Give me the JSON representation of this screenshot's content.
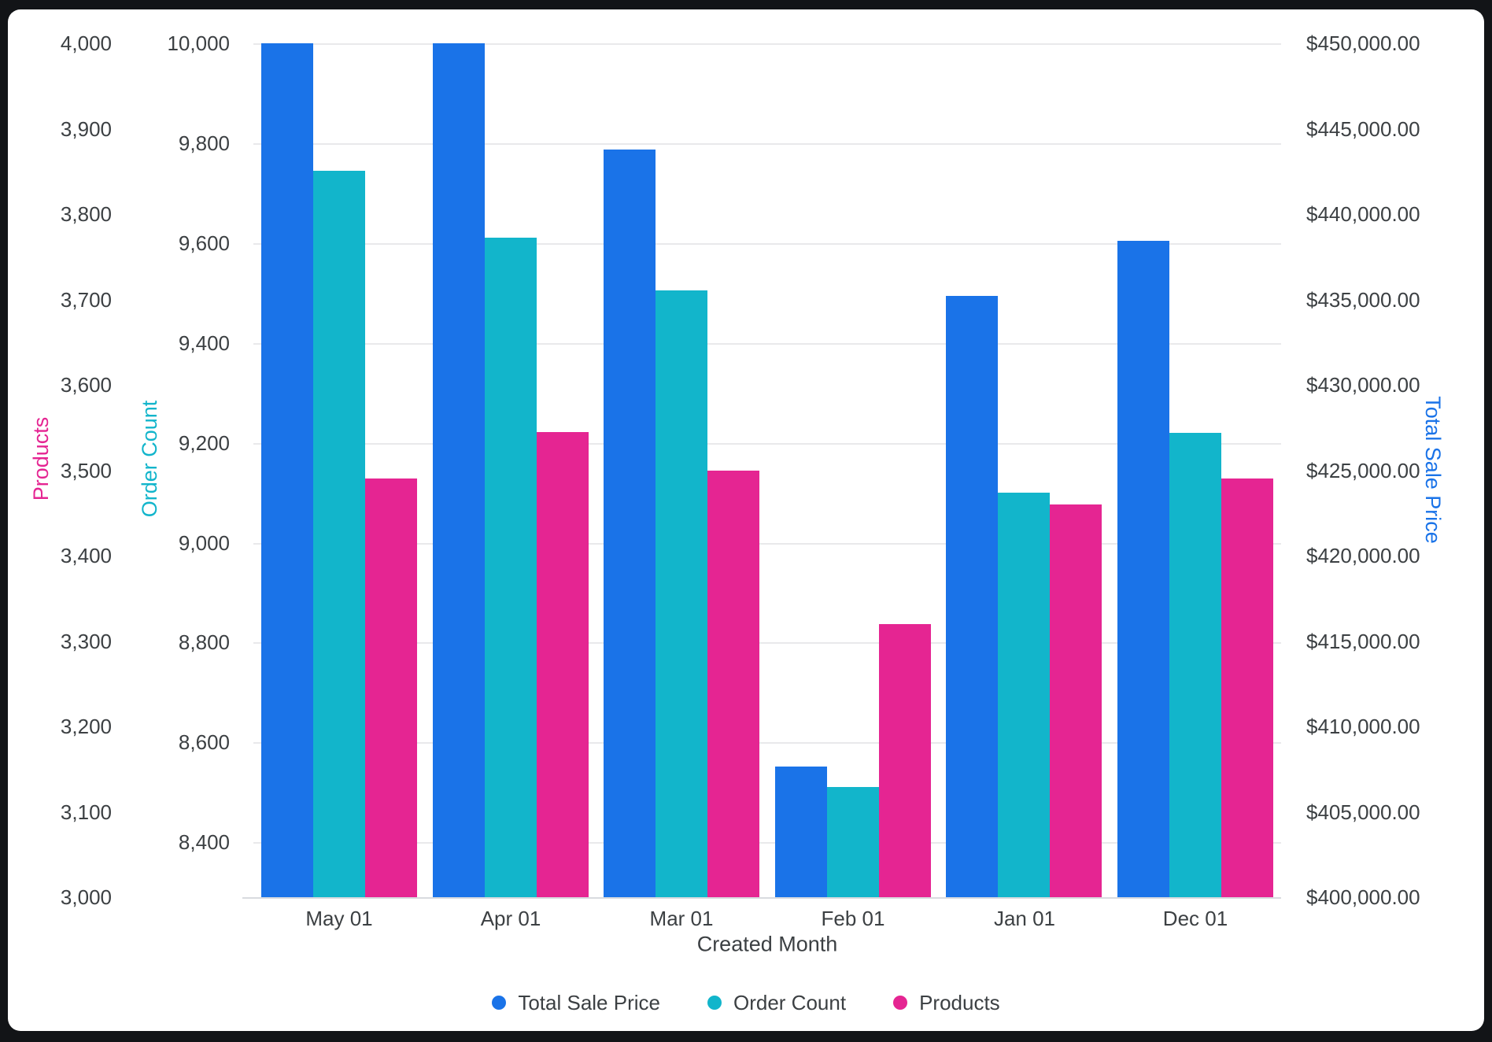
{
  "chart_data": {
    "type": "bar",
    "categories": [
      "May 01",
      "Apr 01",
      "Mar 01",
      "Feb 01",
      "Jan 01",
      "Dec 01"
    ],
    "series": [
      {
        "name": "Total Sale Price",
        "color": "#1A73E8",
        "axis": "price",
        "values": [
          450000,
          450000,
          443780,
          407670,
          435210,
          438430
        ]
      },
      {
        "name": "Order Count",
        "color": "#12B5CB",
        "axis": "order",
        "values": [
          9745,
          9610,
          9505,
          8510,
          9100,
          9220
        ]
      },
      {
        "name": "Products",
        "color": "#E52592",
        "axis": "products",
        "values": [
          3490,
          3545,
          3500,
          3320,
          3460,
          3490
        ]
      }
    ],
    "xlabel": "Created Month",
    "axes": {
      "products": {
        "title": "Products",
        "color": "#E52592",
        "min": 3000,
        "max": 4000,
        "ticks": [
          {
            "v": 4000,
            "label": "4,000"
          },
          {
            "v": 3900,
            "label": "3,900"
          },
          {
            "v": 3800,
            "label": "3,800"
          },
          {
            "v": 3700,
            "label": "3,700"
          },
          {
            "v": 3600,
            "label": "3,600"
          },
          {
            "v": 3500,
            "label": "3,500"
          },
          {
            "v": 3400,
            "label": "3,400"
          },
          {
            "v": 3300,
            "label": "3,300"
          },
          {
            "v": 3200,
            "label": "3,200"
          },
          {
            "v": 3100,
            "label": "3,100"
          },
          {
            "v": 3000,
            "label": "3,000"
          }
        ]
      },
      "order": {
        "title": "Order Count",
        "color": "#12B5CB",
        "min": 8290,
        "max": 10000,
        "gridlines": true,
        "ticks": [
          {
            "v": 10000,
            "label": "10,000"
          },
          {
            "v": 9800,
            "label": "9,800"
          },
          {
            "v": 9600,
            "label": "9,600"
          },
          {
            "v": 9400,
            "label": "9,400"
          },
          {
            "v": 9200,
            "label": "9,200"
          },
          {
            "v": 9000,
            "label": "9,000"
          },
          {
            "v": 8800,
            "label": "8,800"
          },
          {
            "v": 8600,
            "label": "8,600"
          },
          {
            "v": 8400,
            "label": "8,400"
          }
        ]
      },
      "price": {
        "title": "Total Sale Price",
        "color": "#1A73E8",
        "min": 400000,
        "max": 450000,
        "ticks": [
          {
            "v": 450000,
            "label": "$450,000.00"
          },
          {
            "v": 445000,
            "label": "$445,000.00"
          },
          {
            "v": 440000,
            "label": "$440,000.00"
          },
          {
            "v": 435000,
            "label": "$435,000.00"
          },
          {
            "v": 430000,
            "label": "$430,000.00"
          },
          {
            "v": 425000,
            "label": "$425,000.00"
          },
          {
            "v": 420000,
            "label": "$420,000.00"
          },
          {
            "v": 415000,
            "label": "$415,000.00"
          },
          {
            "v": 410000,
            "label": "$410,000.00"
          },
          {
            "v": 405000,
            "label": "$405,000.00"
          },
          {
            "v": 400000,
            "label": "$400,000.00"
          }
        ]
      }
    },
    "legend": {
      "position": "bottom",
      "items": [
        "Total Sale Price",
        "Order Count",
        "Products"
      ]
    },
    "grid": "horizontal gridlines on Order Count ticks only"
  }
}
